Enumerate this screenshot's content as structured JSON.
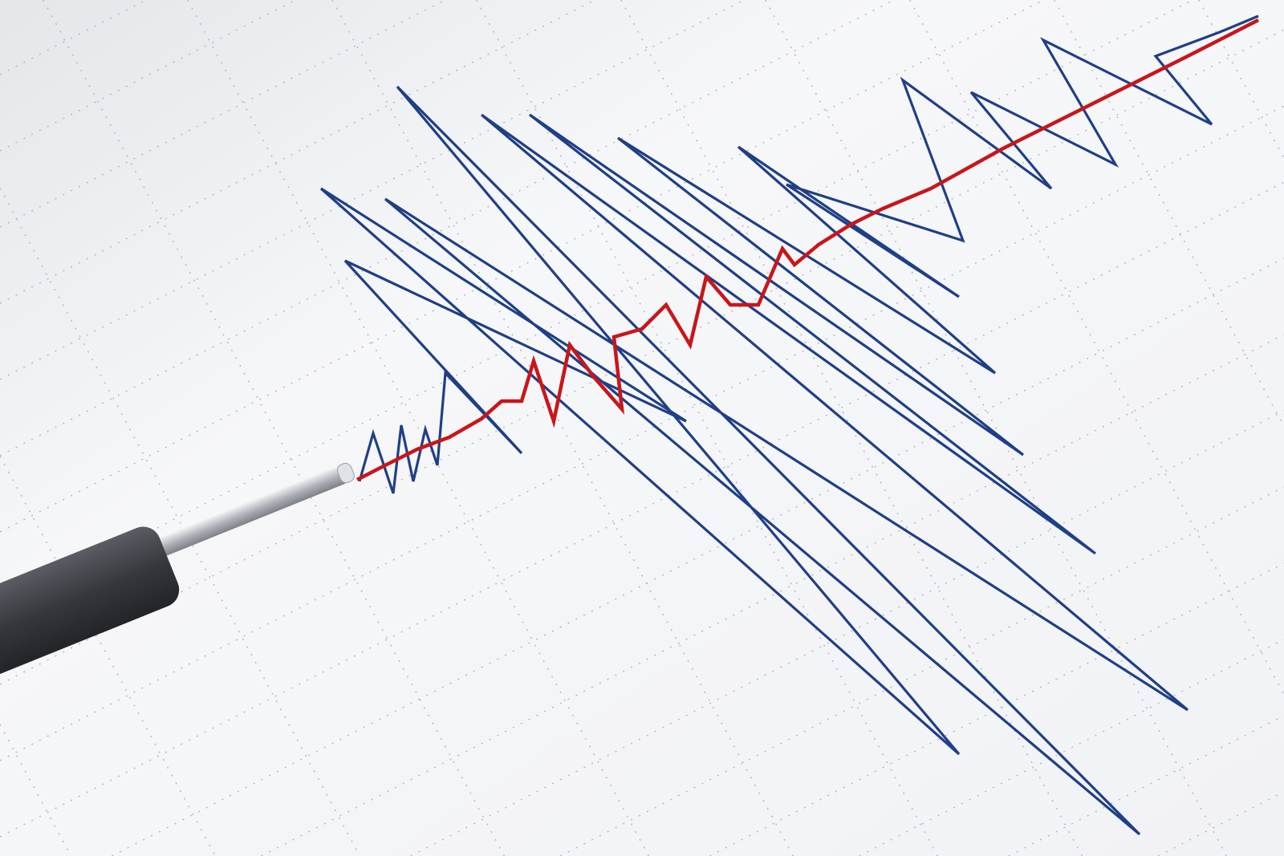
{
  "image": {
    "subject": "seismograph",
    "colors": {
      "paper": "#f4f5f7",
      "grid": "#b8bcc4",
      "trace_blue": "#1f3f86",
      "trace_red": "#c8161b",
      "pen_body": "#3c3f44",
      "pen_rod": "#c9ccd1"
    }
  }
}
